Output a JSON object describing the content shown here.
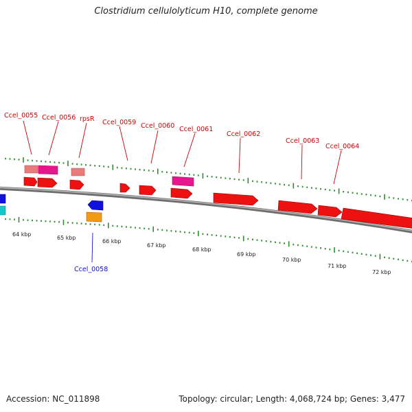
{
  "title": "Clostridium cellulolyticum H10, complete genome",
  "footer": {
    "accession": "Accession: NC_011898",
    "summary": "Topology: circular; Length: 4,068,724 bp; Genes: 3,477"
  },
  "colors": {
    "forward_cds": "#ee1111",
    "forward_pink": "#e8168c",
    "forward_salmon": "#e87c7c",
    "reverse_blue": "#1111dd",
    "reverse_orange": "#f39a14",
    "reverse_cyan": "#12c8cc",
    "ticks": "#2e8b2e",
    "backbone": "#888888",
    "label_forward": "#cc0000",
    "label_reverse": "#1111cc"
  },
  "scale_labels": [
    "64 kbp",
    "65 kbp",
    "66 kbp",
    "67 kbp",
    "68 kbp",
    "69 kbp",
    "70 kbp",
    "71 kbp",
    "72 kbp"
  ],
  "gene_labels": {
    "forward": [
      "Ccel_0055",
      "Ccel_0056",
      "rpsR",
      "Ccel_0059",
      "Ccel_0060",
      "Ccel_0061",
      "Ccel_0062",
      "Ccel_0063",
      "Ccel_0064"
    ],
    "reverse": [
      "Ccel_0058"
    ]
  }
}
